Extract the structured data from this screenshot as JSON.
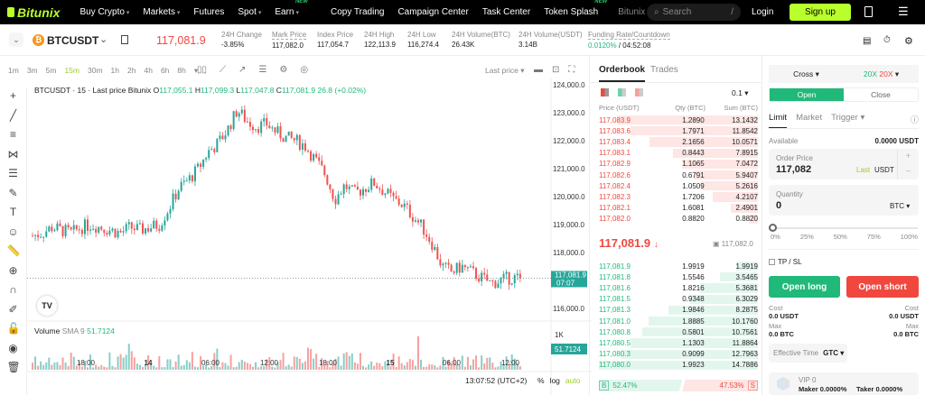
{
  "nav": {
    "logo": "Bitunix",
    "items": [
      {
        "label": "Buy Crypto",
        "caret": true
      },
      {
        "label": "Markets",
        "caret": true
      },
      {
        "label": "Futures"
      },
      {
        "label": "Spot",
        "caret": true
      },
      {
        "label": "Earn",
        "caret": true,
        "badge": "NEW"
      },
      {
        "label": "Copy Trading"
      },
      {
        "label": "Campaign Center"
      },
      {
        "label": "Task Center"
      },
      {
        "label": "Token Splash",
        "badge": "NEW"
      },
      {
        "label": "Bitunix A"
      }
    ],
    "search_placeholder": "Search",
    "search_shortcut": "/",
    "login": "Login",
    "signup": "Sign up"
  },
  "ticker": {
    "symbol": "BTCUSDT",
    "last": "117,081.9",
    "stats": [
      {
        "label": "24H Change",
        "value": "-3.85%",
        "color": "red"
      },
      {
        "label": "Mark Price",
        "value": "117,082.0"
      },
      {
        "label": "Index Price",
        "value": "117,054.7"
      },
      {
        "label": "24H High",
        "value": "122,113.9"
      },
      {
        "label": "24H Low",
        "value": "116,274.4"
      },
      {
        "label": "24H Volume(BTC)",
        "value": "26.43K"
      },
      {
        "label": "24H Volume(USDT)",
        "value": "3.14B"
      }
    ],
    "funding_label": "Funding Rate/Countdown",
    "funding_rate": "0.0120%",
    "countdown": "/ 04:52:08"
  },
  "chart": {
    "intervals": [
      "1m",
      "3m",
      "5m",
      "15m",
      "30m",
      "1h",
      "2h",
      "4h",
      "6h",
      "8h"
    ],
    "active_interval": "15m",
    "price_type": "Last price",
    "legend": {
      "title": "BTCUSDT · 15 · Last price Bitunix",
      "o": "117,055.1",
      "h": "117,099.3",
      "l": "117,047.8",
      "c": "117,081.9",
      "chg": "26.8 (+0.02%)"
    },
    "price_ticks": [
      "124,000.0",
      "123,000.0",
      "122,000.0",
      "121,000.0",
      "120,000.0",
      "119,000.0",
      "118,000.0",
      "116,000.0"
    ],
    "last_label": "117,081.9",
    "last_countdown": "07:07",
    "volume_label": "Volume",
    "volume_sma": "SMA 9",
    "volume_value": "51.7124",
    "volume_tick": "1K",
    "time_ticks": [
      "18:00",
      "14",
      "06:00",
      "12:00",
      "18:00",
      "15",
      "06:00",
      "12:00"
    ],
    "clock": "13:07:52 (UTC+2)",
    "opts": [
      "%",
      "log",
      "auto"
    ],
    "closes": [
      118600,
      118700,
      118900,
      118800,
      118700,
      118900,
      119000,
      118900,
      118800,
      118700,
      118900,
      118800,
      118900,
      119000,
      119600,
      120300,
      120600,
      121000,
      121600,
      121900,
      122400,
      123100,
      122700,
      122500,
      122600,
      122300,
      122100,
      122000,
      121800,
      121300,
      120800,
      119900,
      120400,
      120100,
      120300,
      120500,
      120200,
      119900,
      119700,
      119300,
      118900,
      118300,
      117500,
      117300,
      117500,
      117300,
      117100,
      116900,
      117000,
      117100,
      117081.9
    ],
    "colors": {
      "up": "#26a69a",
      "down": "#ef5350"
    }
  },
  "orderbook": {
    "tabs": [
      "Orderbook",
      "Trades"
    ],
    "precision": "0.1",
    "headers": [
      "Price (USDT)",
      "Qty (BTC)",
      "Sum (BTC)"
    ],
    "asks": [
      [
        "117,083.9",
        "1.2890",
        "13.1432"
      ],
      [
        "117,083.6",
        "1.7971",
        "11.8542"
      ],
      [
        "117,083.4",
        "2.1656",
        "10.0571"
      ],
      [
        "117,083.1",
        "0.8443",
        "7.8915"
      ],
      [
        "117,082.9",
        "1.1065",
        "7.0472"
      ],
      [
        "117,082.6",
        "0.6791",
        "5.9407"
      ],
      [
        "117,082.4",
        "1.0509",
        "5.2616"
      ],
      [
        "117,082.3",
        "1.7206",
        "4.2107"
      ],
      [
        "117,082.1",
        "1.6081",
        "2.4901"
      ],
      [
        "117,082.0",
        "0.8820",
        "0.8820"
      ]
    ],
    "mid_price": "117,081.9",
    "mid_arrow": "↓",
    "mark": "117,082.0",
    "bids": [
      [
        "117,081.9",
        "1.9919",
        "1.9919"
      ],
      [
        "117,081.8",
        "1.5546",
        "3.5465"
      ],
      [
        "117,081.6",
        "1.8216",
        "5.3681"
      ],
      [
        "117,081.5",
        "0.9348",
        "6.3029"
      ],
      [
        "117,081.3",
        "1.9846",
        "8.2875"
      ],
      [
        "117,081.0",
        "1.8885",
        "10.1760"
      ],
      [
        "117,080.8",
        "0.5801",
        "10.7561"
      ],
      [
        "117,080.5",
        "1.1303",
        "11.8864"
      ],
      [
        "117,080.3",
        "0.9099",
        "12.7963"
      ],
      [
        "117,080.0",
        "1.9923",
        "14.7886"
      ]
    ],
    "buy_label": "B",
    "buy_pct": "52.47%",
    "sell_pct": "47.53%",
    "sell_label": "S",
    "buy_ratio": 52.47
  },
  "trade": {
    "margin_mode": "Cross",
    "lev_long": "20X",
    "lev_short": "20X",
    "open": "Open",
    "close": "Close",
    "order_tabs": [
      "Limit",
      "Market",
      "Trigger"
    ],
    "available_label": "Available",
    "available": "0.0000 USDT",
    "price_label": "Order Price",
    "price": "117,082",
    "last": "Last",
    "price_unit": "USDT",
    "qty_label": "Quantity",
    "qty": "0",
    "qty_unit": "BTC",
    "slider_ticks": [
      "0%",
      "25%",
      "50%",
      "75%",
      "100%"
    ],
    "slider_value": 0,
    "tpsl": "TP / SL",
    "open_long": "Open long",
    "open_short": "Open short",
    "cost_label": "Cost",
    "cost_long": "0.0 USDT",
    "cost_short": "0.0 USDT",
    "max_label": "Max",
    "max_long": "0.0 BTC",
    "max_short": "0.0 BTC",
    "eff_label": "Effective Time",
    "eff_value": "GTC",
    "vip": "VIP 0",
    "maker": "Maker 0.0000%",
    "taker": "Taker 0.0000%"
  }
}
